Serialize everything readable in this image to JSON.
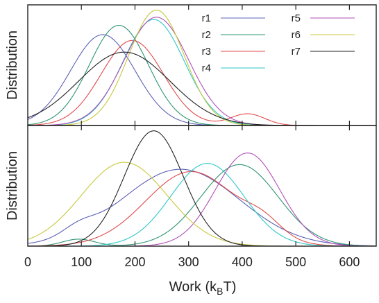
{
  "chart_data": {
    "type": "line",
    "xlabel": "Work (k_BT)",
    "xlabel_main": "Work (k",
    "xlabel_sub": "B",
    "xlabel_end": "T)",
    "xlim": [
      0,
      650
    ],
    "xticks": [
      0,
      100,
      200,
      300,
      400,
      500,
      600
    ],
    "xtick_labels": [
      "0",
      "100",
      "200",
      "300",
      "400",
      "500",
      "600"
    ],
    "legend_position": "top-right",
    "panels": [
      {
        "id": "top",
        "ylabel": "Distribution",
        "ylim": [
          0,
          1.0
        ],
        "series": [
          {
            "name": "r1",
            "color": "#5a60b4",
            "peaks": [
              {
                "mean": 140,
                "sd": 60,
                "amp": 0.78
              }
            ]
          },
          {
            "name": "r2",
            "color": "#2e9471",
            "peaks": [
              {
                "mean": 170,
                "sd": 55,
                "amp": 0.86
              }
            ]
          },
          {
            "name": "r3",
            "color": "#e04a4a",
            "peaks": [
              {
                "mean": 195,
                "sd": 58,
                "amp": 0.73
              },
              {
                "mean": 410,
                "sd": 32,
                "amp": 0.1
              }
            ]
          },
          {
            "name": "r4",
            "color": "#2ec7c9",
            "peaks": [
              {
                "mean": 235,
                "sd": 57,
                "amp": 0.91
              }
            ]
          },
          {
            "name": "r5",
            "color": "#b04fb8",
            "peaks": [
              {
                "mean": 240,
                "sd": 60,
                "amp": 0.93
              }
            ]
          },
          {
            "name": "r6",
            "color": "#c8c83c",
            "peaks": [
              {
                "mean": 240,
                "sd": 52,
                "amp": 0.99
              }
            ]
          },
          {
            "name": "r7",
            "color": "#222222",
            "peaks": [
              {
                "mean": 180,
                "sd": 85,
                "amp": 0.63
              }
            ]
          }
        ]
      },
      {
        "id": "bottom",
        "ylabel": "Distribution",
        "ylim": [
          0,
          1.0
        ],
        "series": [
          {
            "name": "r1",
            "color": "#5a60b4",
            "peaks": [
              {
                "mean": 285,
                "sd": 110,
                "amp": 0.66
              },
              {
                "mean": 95,
                "sd": 30,
                "amp": 0.07
              }
            ]
          },
          {
            "name": "r2",
            "color": "#2e9471",
            "peaks": [
              {
                "mean": 395,
                "sd": 72,
                "amp": 0.7
              },
              {
                "mean": 95,
                "sd": 30,
                "amp": 0.06
              }
            ]
          },
          {
            "name": "r3",
            "color": "#e04a4a",
            "peaks": [
              {
                "mean": 305,
                "sd": 85,
                "amp": 0.64
              },
              {
                "mean": 440,
                "sd": 35,
                "amp": 0.12
              }
            ]
          },
          {
            "name": "r4",
            "color": "#2ec7c9",
            "peaks": [
              {
                "mean": 335,
                "sd": 68,
                "amp": 0.71
              }
            ]
          },
          {
            "name": "r5",
            "color": "#b04fb8",
            "peaks": [
              {
                "mean": 410,
                "sd": 60,
                "amp": 0.8
              }
            ]
          },
          {
            "name": "r6",
            "color": "#c8c83c",
            "peaks": [
              {
                "mean": 180,
                "sd": 80,
                "amp": 0.72
              }
            ]
          },
          {
            "name": "r7",
            "color": "#222222",
            "peaks": [
              {
                "mean": 235,
                "sd": 55,
                "amp": 0.99
              }
            ]
          }
        ]
      }
    ]
  }
}
